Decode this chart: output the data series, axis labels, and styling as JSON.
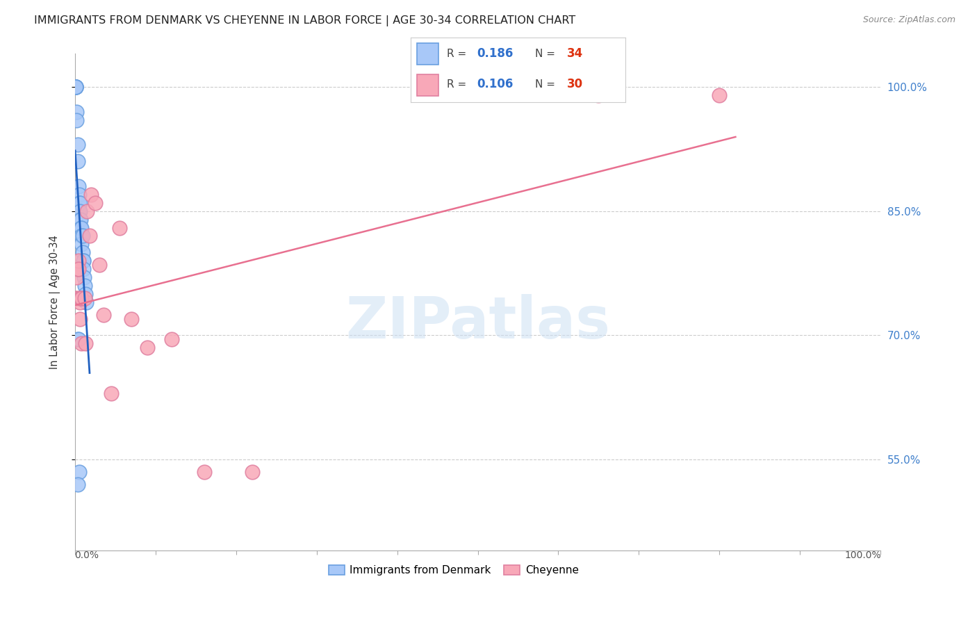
{
  "title": "IMMIGRANTS FROM DENMARK VS CHEYENNE IN LABOR FORCE | AGE 30-34 CORRELATION CHART",
  "source": "Source: ZipAtlas.com",
  "ylabel": "In Labor Force | Age 30-34",
  "ytick_labels": [
    "55.0%",
    "70.0%",
    "85.0%",
    "100.0%"
  ],
  "ytick_values": [
    0.55,
    0.7,
    0.85,
    1.0
  ],
  "xlim": [
    0.0,
    1.0
  ],
  "ylim": [
    0.44,
    1.04
  ],
  "legend_label_blue": "Immigrants from Denmark",
  "legend_label_pink": "Cheyenne",
  "r_blue": "0.186",
  "n_blue": "34",
  "r_pink": "0.106",
  "n_pink": "30",
  "blue_color": "#a8c8f8",
  "pink_color": "#f8a8b8",
  "blue_edge_color": "#6aa0e0",
  "pink_edge_color": "#e080a0",
  "blue_line_color": "#2060c0",
  "pink_line_color": "#e87090",
  "watermark": "ZIPatlas",
  "blue_points_x": [
    0.001,
    0.001,
    0.001,
    0.001,
    0.001,
    0.002,
    0.002,
    0.003,
    0.003,
    0.004,
    0.005,
    0.005,
    0.005,
    0.006,
    0.006,
    0.006,
    0.007,
    0.007,
    0.008,
    0.008,
    0.008,
    0.009,
    0.009,
    0.01,
    0.01,
    0.01,
    0.011,
    0.012,
    0.013,
    0.014,
    0.003,
    0.004,
    0.005,
    0.003
  ],
  "blue_points_y": [
    1.0,
    1.0,
    1.0,
    1.0,
    1.0,
    0.97,
    0.96,
    0.93,
    0.91,
    0.88,
    0.87,
    0.86,
    0.85,
    0.86,
    0.85,
    0.84,
    0.84,
    0.83,
    0.83,
    0.82,
    0.81,
    0.82,
    0.8,
    0.79,
    0.79,
    0.78,
    0.77,
    0.76,
    0.75,
    0.74,
    0.695,
    0.695,
    0.535,
    0.52
  ],
  "pink_points_x": [
    0.001,
    0.001,
    0.002,
    0.003,
    0.004,
    0.004,
    0.005,
    0.006,
    0.006,
    0.007,
    0.007,
    0.008,
    0.008,
    0.012,
    0.013,
    0.015,
    0.018,
    0.02,
    0.025,
    0.03,
    0.035,
    0.045,
    0.055,
    0.07,
    0.09,
    0.12,
    0.16,
    0.22,
    0.65,
    0.8
  ],
  "pink_points_y": [
    0.745,
    0.745,
    0.77,
    0.78,
    0.79,
    0.78,
    0.745,
    0.72,
    0.74,
    0.745,
    0.745,
    0.745,
    0.69,
    0.745,
    0.69,
    0.85,
    0.82,
    0.87,
    0.86,
    0.785,
    0.725,
    0.63,
    0.83,
    0.72,
    0.685,
    0.695,
    0.535,
    0.535,
    0.99,
    0.99
  ],
  "blue_line_x_start": 0.0,
  "blue_line_x_end": 0.018,
  "pink_line_x_start": 0.0,
  "pink_line_x_end": 0.82
}
